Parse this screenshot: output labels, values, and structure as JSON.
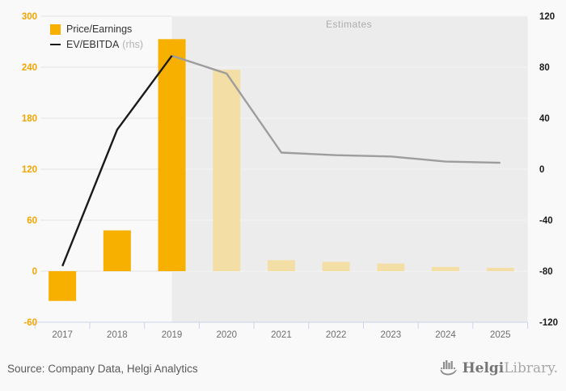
{
  "chart_data": {
    "type": "combo",
    "categories": [
      "2017",
      "2018",
      "2019",
      "2020",
      "2021",
      "2022",
      "2023",
      "2024",
      "2025"
    ],
    "series": [
      {
        "name": "Price/Earnings",
        "type": "bar",
        "axis": "left",
        "values": [
          -35,
          48,
          273,
          237,
          13,
          11,
          9,
          5,
          4
        ],
        "estimate_from_index": 3
      },
      {
        "name": "EV/EBITDA",
        "type": "line",
        "axis": "right",
        "values": [
          -76,
          31,
          89,
          75,
          13,
          11,
          10,
          6,
          5
        ],
        "estimate_from_index": 2
      }
    ],
    "left_axis": {
      "min": -60,
      "max": 300,
      "ticks": [
        300,
        240,
        180,
        120,
        60,
        0,
        -60
      ]
    },
    "right_axis": {
      "min": -120,
      "max": 120,
      "ticks": [
        120,
        80,
        40,
        0,
        -40,
        -80,
        -120
      ]
    },
    "estimates_label": "Estimates",
    "estimates_start_category": "2019",
    "grid": true,
    "legend_position": "top-left"
  },
  "legend": {
    "bar_label": "Price/Earnings",
    "line_label": "EV/EBITDA",
    "line_suffix": "(rhs)"
  },
  "annotations": {
    "estimates": "Estimates"
  },
  "footer": {
    "source": "Source: Company Data, Helgi Analytics",
    "logo_part1": "Helgi",
    "logo_part2": "Library."
  },
  "colors": {
    "bar_actual": "#F8B000",
    "bar_estimate": "#F3DFA5",
    "line_actual": "#1A1A1A",
    "line_estimate": "#9D9D9D",
    "estimates_bg": "#ECECEC",
    "page_bg": "#F9F9F9",
    "gridline": "#E3E3E3",
    "gridline_in_estimates": "#F3F3F3",
    "axis_line": "#CCD3E8",
    "left_axis_label": "#F2A500",
    "right_axis_label": "#1A1A1A",
    "x_axis_label": "#6E6E6E"
  }
}
